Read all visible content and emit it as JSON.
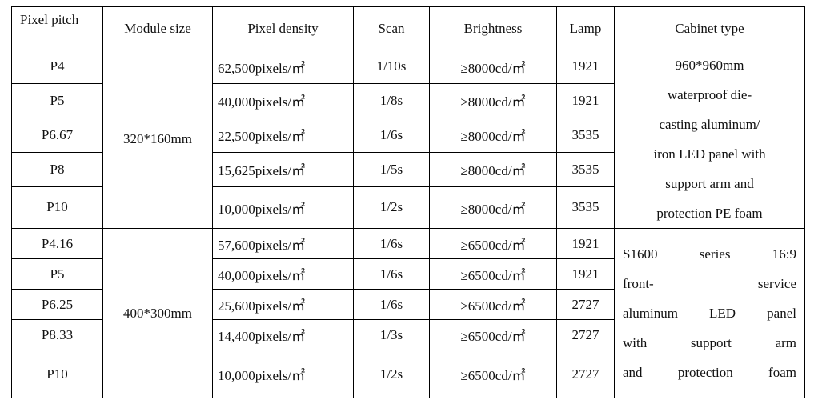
{
  "table": {
    "header": [
      "Pixel pitch",
      "Module size",
      "Pixel density",
      "Scan",
      "Brightness",
      "Lamp",
      "Cabinet type"
    ],
    "groups": [
      {
        "module_size": "320*160mm",
        "cabinet_type": [
          "960*960mm",
          "waterproof die-",
          "casting aluminum/",
          "iron LED panel with",
          "support arm and",
          "protection PE foam"
        ],
        "rows": [
          [
            "P4",
            "62,500pixels/㎡",
            "1/10s",
            "≥8000cd/㎡",
            "1921"
          ],
          [
            "P5",
            "40,000pixels/㎡",
            "1/8s",
            "≥8000cd/㎡",
            "1921"
          ],
          [
            "P6.67",
            "22,500pixels/㎡",
            "1/6s",
            "≥8000cd/㎡",
            "3535"
          ],
          [
            "P8",
            "15,625pixels/㎡",
            "1/5s",
            "≥8000cd/㎡",
            "3535"
          ],
          [
            "P10",
            "10,000pixels/㎡",
            "1/2s",
            "≥8000cd/㎡",
            "3535"
          ]
        ]
      },
      {
        "module_size": "400*300mm",
        "cabinet_type": [
          "S1600 series 16:9",
          "front- service",
          "aluminum LED panel",
          "with support arm",
          "and protection foam"
        ],
        "rows": [
          [
            "P4.16",
            "57,600pixels/㎡",
            "1/6s",
            "≥6500cd/㎡",
            "1921"
          ],
          [
            "P5",
            "40,000pixels/㎡",
            "1/6s",
            "≥6500cd/㎡",
            "1921"
          ],
          [
            "P6.25",
            "25,600pixels/㎡",
            "1/6s",
            "≥6500cd/㎡",
            "2727"
          ],
          [
            "P8.33",
            "14,400pixels/㎡",
            "1/3s",
            "≥6500cd/㎡",
            "2727"
          ],
          [
            "P10",
            "10,000pixels/㎡",
            "1/2s",
            "≥6500cd/㎡",
            "2727"
          ]
        ]
      }
    ]
  }
}
